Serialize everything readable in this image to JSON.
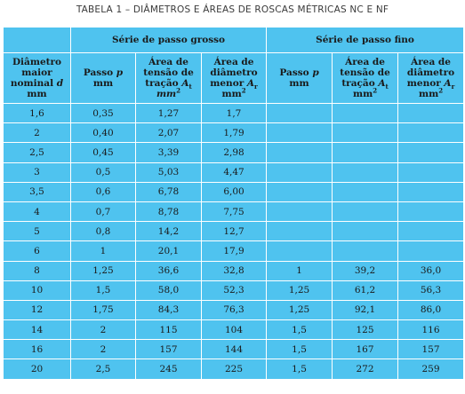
{
  "caption": "TABELA 1 – DIÂMETROS E ÁREAS DE ROSCAS MÉTRICAS NC E NF",
  "series": {
    "coarse": "Série de passo grosso",
    "fine": "Série de passo fino"
  },
  "headers": {
    "diameter": {
      "l1": "Diâmetro",
      "l2": "maior",
      "l3": "nominal",
      "var": "d",
      "unit": "mm"
    },
    "pitch": {
      "text": "Passo",
      "var": "p",
      "unit": "mm"
    },
    "tensile": {
      "l1": "Área de",
      "l2": "tensão de",
      "l3": "tração",
      "var": "A",
      "sub": "t",
      "unit": "mm",
      "sup": "2"
    },
    "minor": {
      "l1": "Área de",
      "l2": "diâmetro",
      "l3": "menor",
      "var": "A",
      "sub": "r",
      "unit": "mm",
      "sup": "2"
    }
  },
  "rows": [
    [
      "1,6",
      "0,35",
      "1,27",
      "1,7",
      "",
      "",
      ""
    ],
    [
      "2",
      "0,40",
      "2,07",
      "1,79",
      "",
      "",
      ""
    ],
    [
      "2,5",
      "0,45",
      "3,39",
      "2,98",
      "",
      "",
      ""
    ],
    [
      "3",
      "0,5",
      "5,03",
      "4,47",
      "",
      "",
      ""
    ],
    [
      "3,5",
      "0,6",
      "6,78",
      "6,00",
      "",
      "",
      ""
    ],
    [
      "4",
      "0,7",
      "8,78",
      "7,75",
      "",
      "",
      ""
    ],
    [
      "5",
      "0,8",
      "14,2",
      "12,7",
      "",
      "",
      ""
    ],
    [
      "6",
      "1",
      "20,1",
      "17,9",
      "",
      "",
      ""
    ],
    [
      "8",
      "1,25",
      "36,6",
      "32,8",
      "1",
      "39,2",
      "36,0"
    ],
    [
      "10",
      "1,5",
      "58,0",
      "52,3",
      "1,25",
      "61,2",
      "56,3"
    ],
    [
      "12",
      "1,75",
      "84,3",
      "76,3",
      "1,25",
      "92,1",
      "86,0"
    ],
    [
      "14",
      "2",
      "115",
      "104",
      "1,5",
      "125",
      "116"
    ],
    [
      "16",
      "2",
      "157",
      "144",
      "1,5",
      "167",
      "157"
    ],
    [
      "20",
      "2,5",
      "245",
      "225",
      "1,5",
      "272",
      "259"
    ]
  ]
}
